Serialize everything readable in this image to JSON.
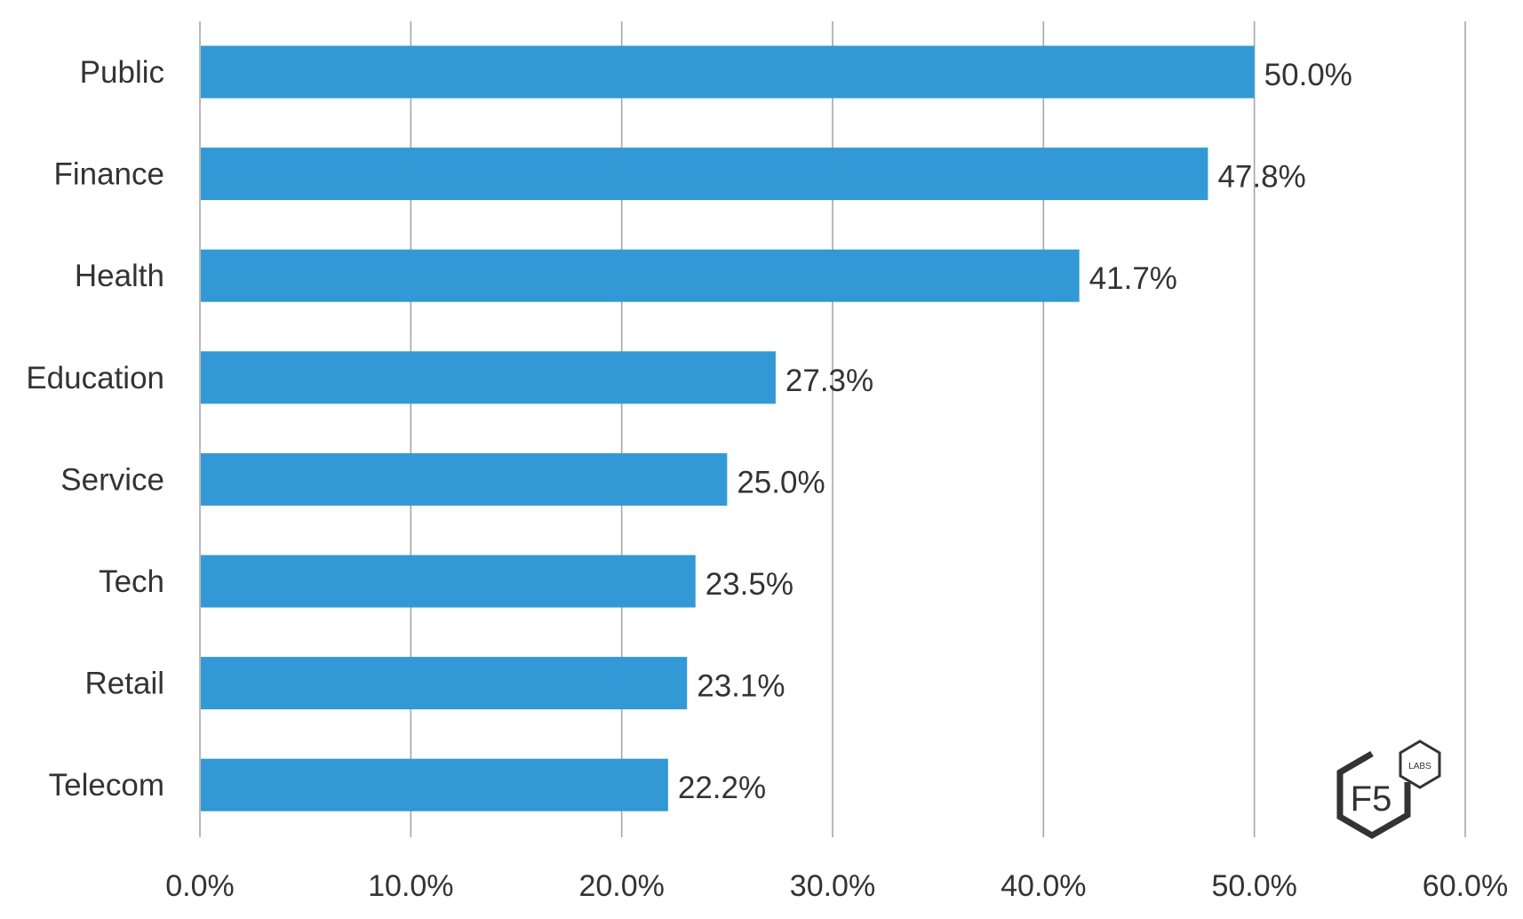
{
  "chart_data": {
    "type": "bar",
    "orientation": "horizontal",
    "title": "",
    "xlabel": "",
    "ylabel": "",
    "categories": [
      "Public",
      "Finance",
      "Health",
      "Education",
      "Service",
      "Tech",
      "Retail",
      "Telecom"
    ],
    "values": [
      50.0,
      47.8,
      41.7,
      27.3,
      25.0,
      23.5,
      23.1,
      22.2
    ],
    "data_labels": [
      "50.0%",
      "47.8%",
      "41.7%",
      "27.3%",
      "25.0%",
      "23.5%",
      "23.1%",
      "22.2%"
    ],
    "xlim": [
      0,
      60
    ],
    "x_ticks": [
      0,
      10,
      20,
      30,
      40,
      50,
      60
    ],
    "x_tick_labels": [
      "0.0%",
      "10.0%",
      "20.0%",
      "30.0%",
      "40.0%",
      "50.0%",
      "60.0%"
    ],
    "grid": "vertical",
    "legend": "none",
    "bar_color": "#3399D6",
    "grid_color": "#A6A6A6",
    "text_color": "#333333"
  },
  "logo": {
    "brand": "F5",
    "sub": "LABS"
  }
}
